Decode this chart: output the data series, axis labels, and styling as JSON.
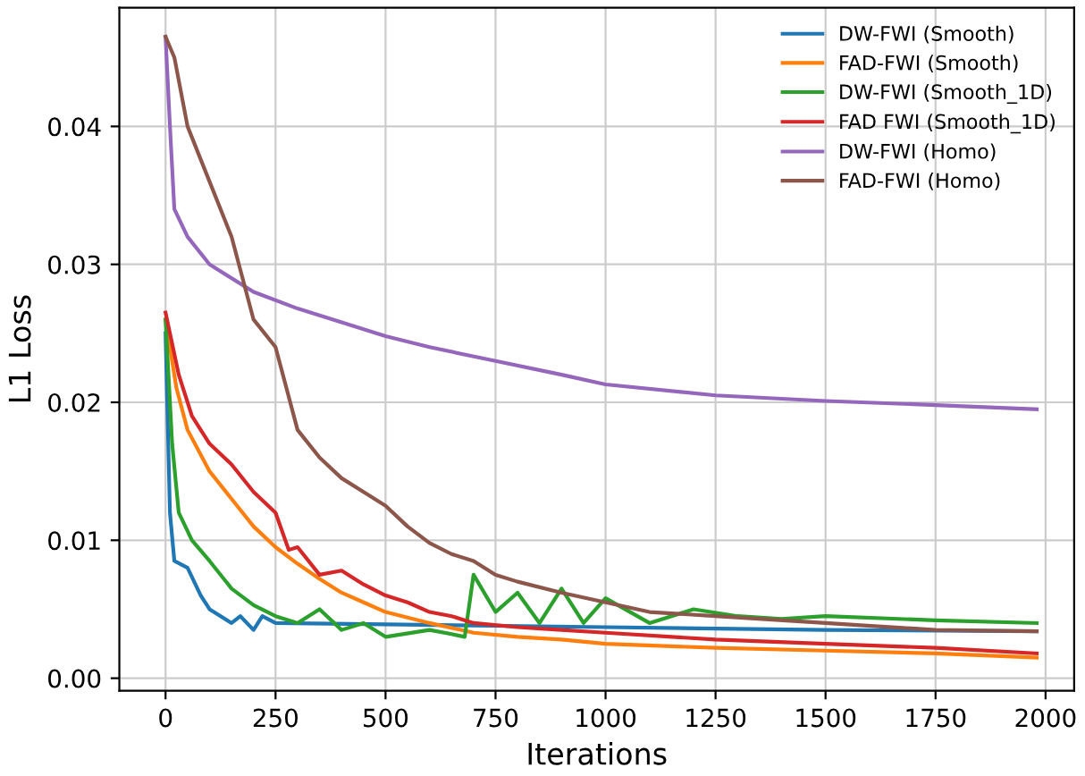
{
  "chart_data": {
    "type": "line",
    "xlabel": "Iterations",
    "ylabel": "L1 Loss",
    "xlim": [
      -105,
      2065
    ],
    "ylim": [
      -0.0009,
      0.0486
    ],
    "xticks": [
      0,
      250,
      500,
      750,
      1000,
      1250,
      1500,
      1750,
      2000
    ],
    "yticks": [
      {
        "value": 0,
        "label": "0.00"
      },
      {
        "value": 0.01,
        "label": "0.01"
      },
      {
        "value": 0.02,
        "label": "0.02"
      },
      {
        "value": 0.03,
        "label": "0.03"
      },
      {
        "value": 0.04,
        "label": "0.04"
      }
    ],
    "grid": true,
    "legend": "top right",
    "marker": "none",
    "line_style": "solid",
    "series": [
      {
        "name": "DW-FWI (Smooth)",
        "color": "#1f77b4",
        "x": [
          0,
          10,
          20,
          50,
          80,
          100,
          150,
          170,
          200,
          220,
          250,
          500,
          1000,
          1500,
          1980
        ],
        "values": [
          0.025,
          0.012,
          0.0085,
          0.008,
          0.006,
          0.005,
          0.004,
          0.0045,
          0.0035,
          0.0045,
          0.004,
          0.0039,
          0.0037,
          0.0035,
          0.0034
        ]
      },
      {
        "name": "FAD-FWI (Smooth)",
        "color": "#ff7f0e",
        "x": [
          0,
          25,
          50,
          100,
          150,
          200,
          250,
          300,
          350,
          400,
          450,
          500,
          600,
          700,
          800,
          900,
          1000,
          1250,
          1500,
          1750,
          1980
        ],
        "values": [
          0.026,
          0.021,
          0.018,
          0.015,
          0.013,
          0.011,
          0.0095,
          0.0083,
          0.0072,
          0.0062,
          0.0055,
          0.0048,
          0.004,
          0.0033,
          0.003,
          0.0028,
          0.0025,
          0.0022,
          0.002,
          0.0018,
          0.0015
        ]
      },
      {
        "name": "DW-FWI (Smooth_1D)",
        "color": "#2ca02c",
        "x": [
          0,
          15,
          30,
          60,
          100,
          150,
          200,
          250,
          300,
          350,
          400,
          450,
          500,
          600,
          650,
          680,
          700,
          750,
          800,
          850,
          900,
          950,
          1000,
          1100,
          1200,
          1300,
          1400,
          1500,
          1750,
          1980
        ],
        "values": [
          0.026,
          0.017,
          0.012,
          0.01,
          0.0085,
          0.0065,
          0.0053,
          0.0045,
          0.004,
          0.005,
          0.0035,
          0.004,
          0.003,
          0.0035,
          0.0032,
          0.003,
          0.0075,
          0.0048,
          0.0062,
          0.004,
          0.0065,
          0.004,
          0.0058,
          0.004,
          0.005,
          0.0045,
          0.0043,
          0.0045,
          0.0042,
          0.004
        ]
      },
      {
        "name": "FAD FWI (Smooth_1D)",
        "color": "#d62728",
        "x": [
          0,
          30,
          60,
          100,
          150,
          200,
          250,
          280,
          300,
          350,
          400,
          450,
          500,
          550,
          600,
          650,
          700,
          800,
          900,
          1000,
          1250,
          1500,
          1750,
          1980
        ],
        "values": [
          0.0265,
          0.022,
          0.019,
          0.017,
          0.0155,
          0.0135,
          0.012,
          0.0093,
          0.0095,
          0.0075,
          0.0078,
          0.0068,
          0.006,
          0.0055,
          0.0048,
          0.0045,
          0.004,
          0.0037,
          0.0035,
          0.0033,
          0.0028,
          0.0025,
          0.0022,
          0.0018
        ]
      },
      {
        "name": "DW-FWI (Homo)",
        "color": "#9467bd",
        "x": [
          0,
          10,
          20,
          50,
          100,
          200,
          300,
          400,
          500,
          600,
          750,
          900,
          1000,
          1250,
          1500,
          1750,
          1980
        ],
        "values": [
          0.0465,
          0.04,
          0.034,
          0.032,
          0.03,
          0.028,
          0.0268,
          0.0258,
          0.0248,
          0.024,
          0.023,
          0.022,
          0.0213,
          0.0205,
          0.0201,
          0.0198,
          0.0195
        ]
      },
      {
        "name": "FAD-FWI (Homo)",
        "color": "#8c564b",
        "x": [
          0,
          20,
          50,
          100,
          150,
          200,
          250,
          300,
          350,
          400,
          450,
          500,
          550,
          600,
          650,
          700,
          750,
          800,
          900,
          1000,
          1100,
          1250,
          1500,
          1750,
          1980
        ],
        "values": [
          0.0465,
          0.045,
          0.04,
          0.036,
          0.032,
          0.026,
          0.024,
          0.018,
          0.016,
          0.0145,
          0.0135,
          0.0125,
          0.011,
          0.0098,
          0.009,
          0.0085,
          0.0075,
          0.007,
          0.0062,
          0.0055,
          0.0048,
          0.0045,
          0.004,
          0.0035,
          0.0034
        ]
      }
    ]
  }
}
